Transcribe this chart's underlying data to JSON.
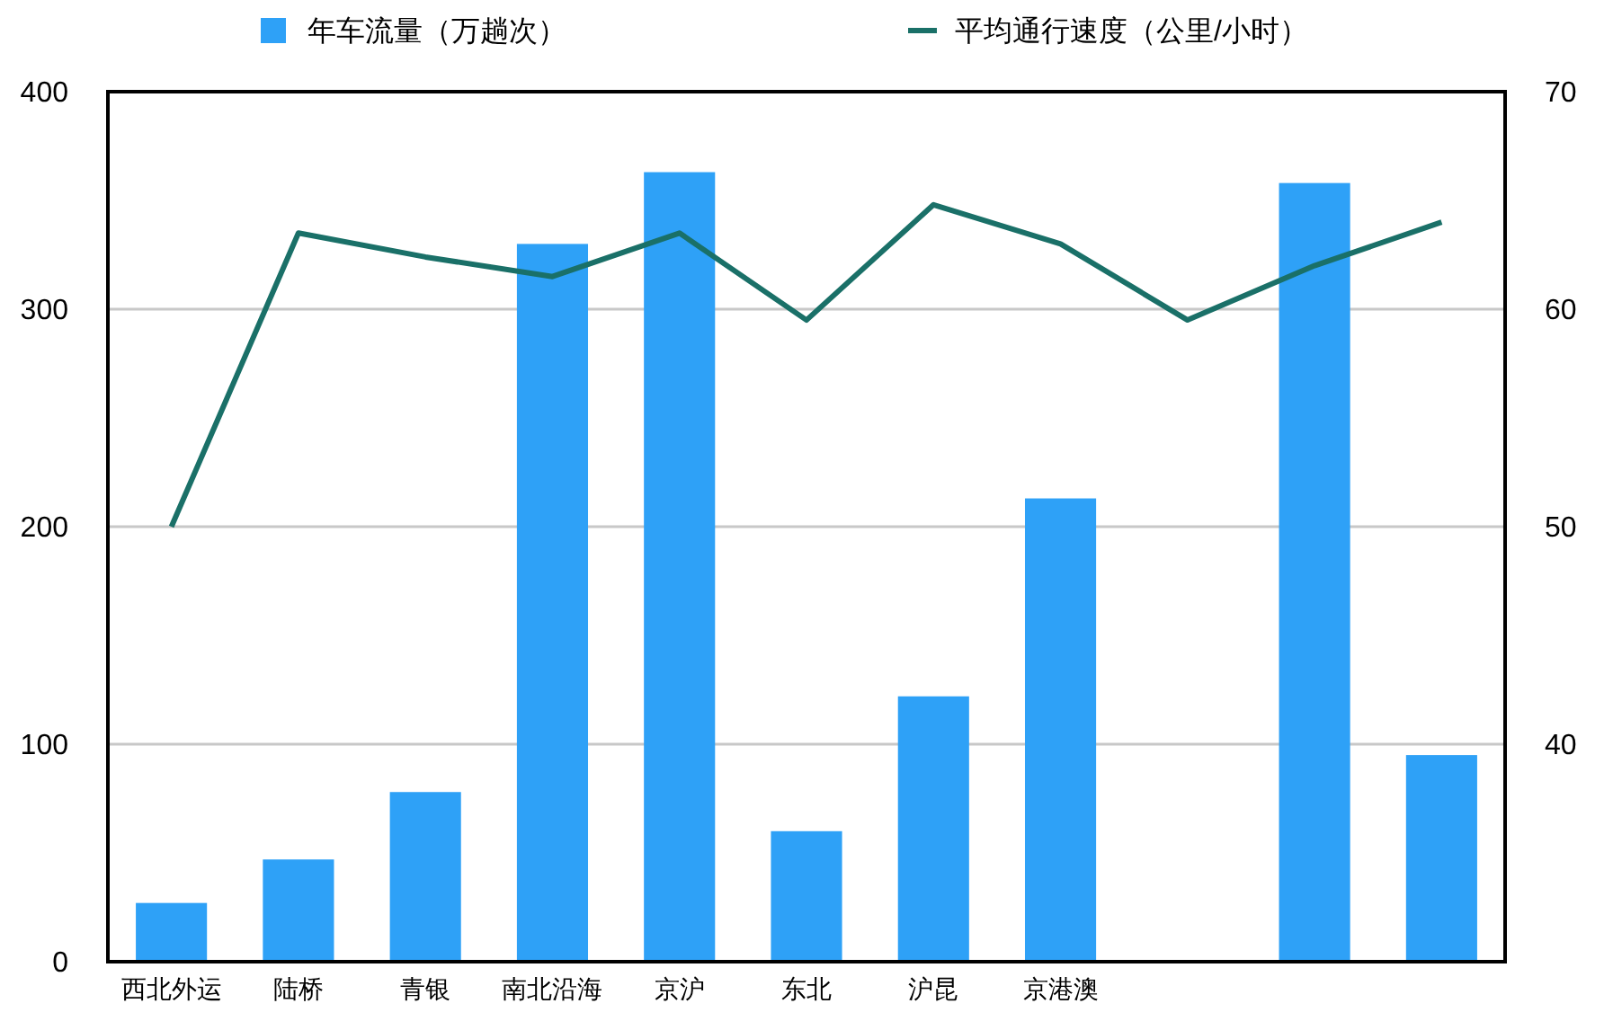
{
  "chart_data": {
    "type": "bar",
    "categories": [
      "西北外运",
      "陆桥",
      "青银",
      "南北沿海",
      "京沪",
      "东北",
      "沪昆",
      "京港澳",
      null,
      null,
      null
    ],
    "series": [
      {
        "name": "年车流量（万趟次）",
        "color": "#2ea1f7",
        "values": [
          27,
          47,
          78,
          330,
          363,
          60,
          122,
          213,
          null,
          358,
          95
        ]
      },
      {
        "name": "平均通行速度（公里/小时）",
        "type": "line",
        "axis": "y2",
        "color": "#1a7068",
        "values": [
          50,
          63.5,
          62.4,
          61.5,
          63.5,
          59.5,
          64.8,
          63,
          59.5,
          62,
          64
        ]
      }
    ],
    "ylim": [
      0,
      400
    ],
    "yticks": [
      0,
      100,
      200,
      300,
      400
    ],
    "y2lim": [
      30,
      70
    ],
    "y2ticks": [
      40,
      50,
      60,
      70
    ],
    "grid": "y",
    "legend": "top",
    "marker": "none"
  }
}
